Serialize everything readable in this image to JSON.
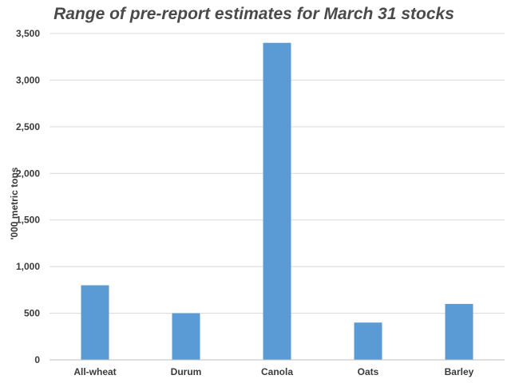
{
  "chart_data": {
    "type": "bar",
    "title": "Range of pre-report estimates for March 31 stocks",
    "ylabel": "'000 metric tons",
    "xlabel": "",
    "categories": [
      "All-wheat",
      "Durum",
      "Canola",
      "Oats",
      "Barley"
    ],
    "values": [
      800,
      500,
      3400,
      400,
      600
    ],
    "ylim": [
      0,
      3500
    ],
    "yticks": [
      0,
      500,
      1000,
      1500,
      2000,
      2500,
      3000,
      3500
    ],
    "ytick_labels": [
      "0",
      "500",
      "1,000",
      "1,500",
      "2,000",
      "2,500",
      "3,000",
      "3,500"
    ],
    "grid": true,
    "legend": "none",
    "bar_color": "#5b9bd5"
  }
}
